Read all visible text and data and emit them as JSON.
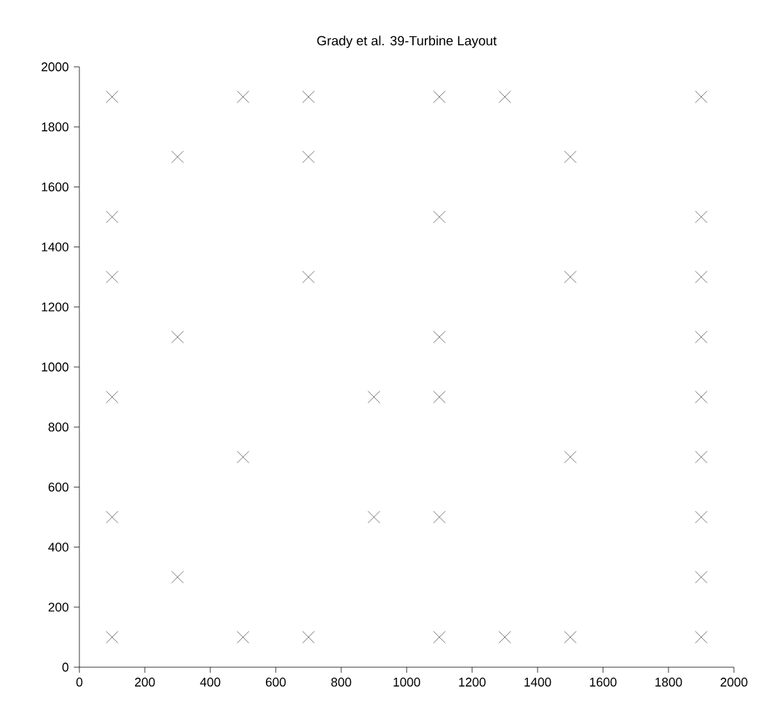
{
  "chart_data": {
    "type": "scatter",
    "title": "Grady et al. 39-Turbine Layout",
    "marker": "cross",
    "color": "#505050",
    "x": [
      100,
      500,
      700,
      1100,
      1300,
      1900,
      300,
      700,
      1500,
      100,
      1100,
      1900,
      100,
      700,
      1500,
      1900,
      300,
      1100,
      1900,
      100,
      900,
      1100,
      1900,
      500,
      1500,
      1900,
      100,
      900,
      1100,
      1900,
      300,
      1900,
      100,
      500,
      700,
      1100,
      1300,
      1500,
      1900
    ],
    "values": [
      1900,
      1900,
      1900,
      1900,
      1900,
      1900,
      1700,
      1700,
      1700,
      1500,
      1500,
      1500,
      1300,
      1300,
      1300,
      1300,
      1100,
      1100,
      1100,
      900,
      900,
      900,
      900,
      700,
      700,
      700,
      500,
      500,
      500,
      500,
      300,
      300,
      100,
      100,
      100,
      100,
      100,
      100,
      100
    ],
    "xlim": [
      0,
      2000
    ],
    "ylim": [
      0,
      2000
    ],
    "xticks": [
      0,
      200,
      400,
      600,
      800,
      1000,
      1200,
      1400,
      1600,
      1800,
      2000
    ],
    "yticks": [
      0,
      200,
      400,
      600,
      800,
      1000,
      1200,
      1400,
      1600,
      1800,
      2000
    ],
    "grid": false
  }
}
